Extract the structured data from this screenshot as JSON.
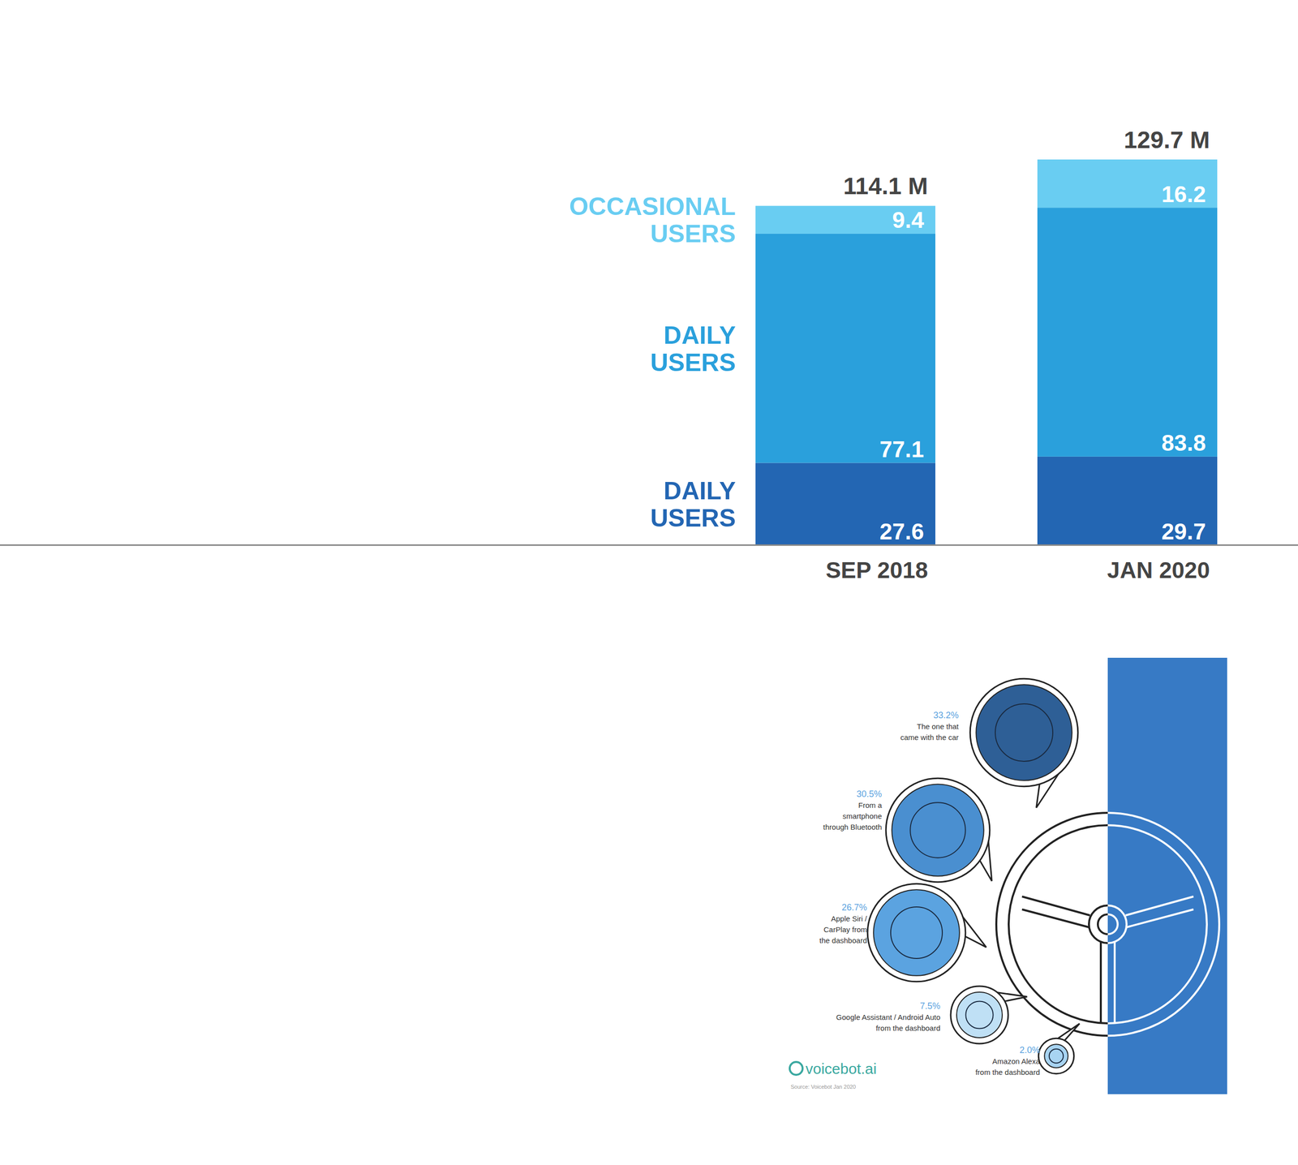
{
  "chart_data": {
    "type": "bar",
    "stacked": true,
    "data_labels": true,
    "tick_labels": "x",
    "categories": [
      "SEP 2018",
      "JAN 2020"
    ],
    "ylim": [
      0,
      129.7
    ],
    "series": [
      {
        "name": "DAILY USERS",
        "color": "#2366b3",
        "values": [
          27.6,
          29.7
        ]
      },
      {
        "name": "DAILY USERS",
        "color": "#2aa0dc",
        "values": [
          77.1,
          83.8
        ]
      },
      {
        "name": "OCCASIONAL USERS",
        "color": "#69cdf2",
        "values": [
          9.4,
          16.2
        ]
      }
    ],
    "totals": {
      "values": [
        114.1,
        129.7
      ],
      "value_labels": [
        "114.1 M",
        "129.7 M"
      ]
    }
  },
  "infographic": {
    "items": [
      {
        "value": 33.2,
        "label": "33.2%",
        "lines": [
          "The one that",
          "came with the car"
        ]
      },
      {
        "value": 30.5,
        "label": "30.5%",
        "lines": [
          "From a",
          "smartphone",
          "through Bluetooth"
        ]
      },
      {
        "value": 26.7,
        "label": "26.7%",
        "lines": [
          "Apple Siri /",
          "CarPlay from",
          "the dashboard"
        ]
      },
      {
        "value": 7.5,
        "label": "7.5%",
        "lines": [
          "Google Assistant / Android Auto",
          "from the dashboard"
        ]
      },
      {
        "value": 2.0,
        "label": "2.0%",
        "lines": [
          "Amazon Alexa",
          "from the dashboard"
        ]
      }
    ],
    "brand": "voicebot.ai",
    "source": "Source: Voicebot Jan 2020"
  }
}
